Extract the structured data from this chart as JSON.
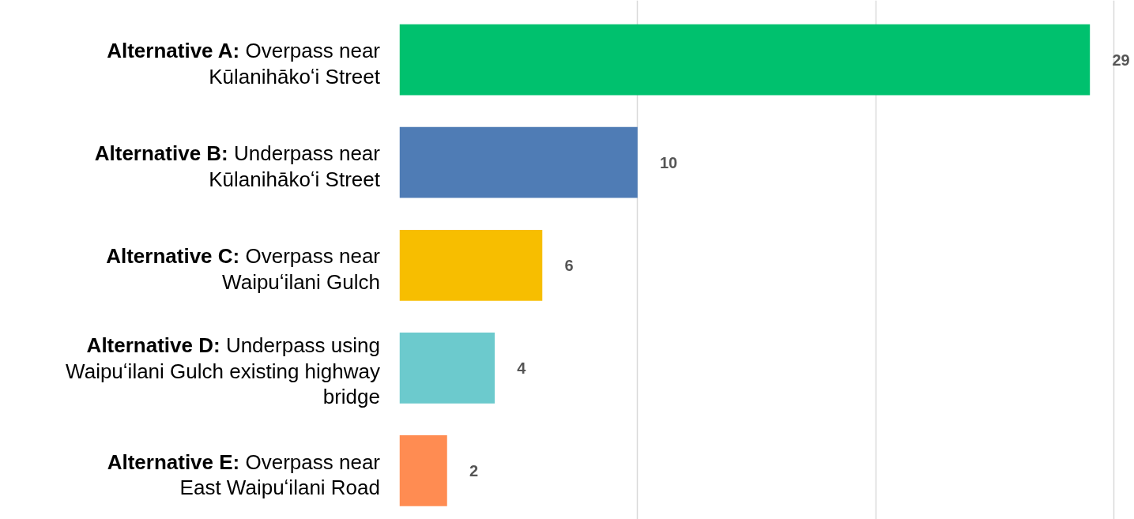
{
  "chart_data": {
    "type": "bar",
    "orientation": "horizontal",
    "categories": [
      "Alternative A: Overpass near\nKūlanihākoʻi Street",
      "Alternative B: Underpass near\nKūlanihākoʻi Street",
      "Alternative C: Overpass near\nWaipuʻilani Gulch",
      "Alternative D: Underpass using\nWaipuʻilani Gulch existing highway\nbridge",
      "Alternative E: Overpass near\nEast Waipuʻilani Road"
    ],
    "values": [
      29,
      10,
      6,
      4,
      2
    ],
    "colors": [
      "#00c16e",
      "#4f7cb5",
      "#f7be00",
      "#6ccacd",
      "#ff8c52"
    ],
    "xlim": [
      0,
      31.2
    ],
    "xticks": [
      {
        "value": 0,
        "label": null
      },
      {
        "value": 10,
        "label": null
      },
      {
        "value": 20,
        "label": null
      },
      {
        "value": 30,
        "label": null
      }
    ],
    "tick_labels": false,
    "grid": "x",
    "data_labels": true
  }
}
